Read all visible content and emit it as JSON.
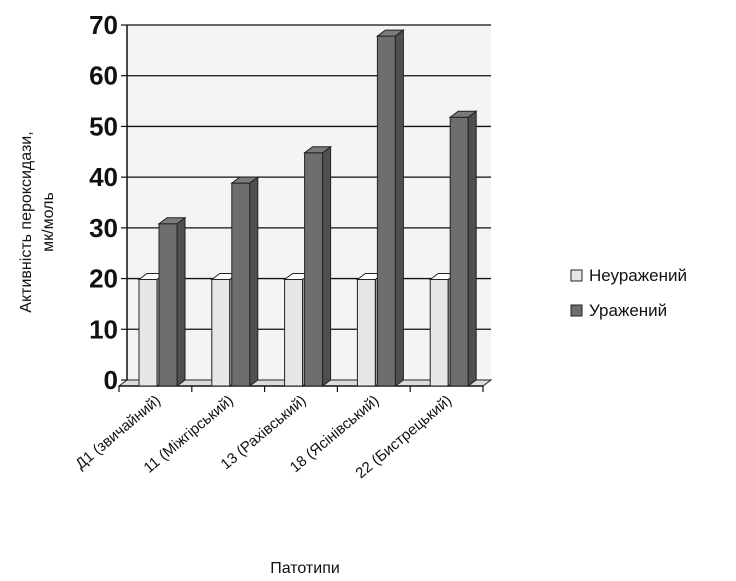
{
  "chart_data": {
    "type": "bar",
    "categories": [
      "Д1 (звичайний)",
      "11 (Міжгірський)",
      "13 (Рахівський)",
      "18 (Ясінівський)",
      "22 (Бистрецький)"
    ],
    "series": [
      {
        "name": "Неуражений",
        "color": "#e6e6e6",
        "values": [
          21,
          21,
          21,
          21,
          21
        ]
      },
      {
        "name": "Уражений",
        "color": "#6e6e6e",
        "values": [
          32,
          40,
          46,
          69,
          53
        ]
      }
    ],
    "ylabel_line1": "Активність пероксидази,",
    "ylabel_line2": "мк/моль",
    "xlabel": "Патотипи",
    "ylim": [
      0,
      70
    ],
    "yticks": [
      0,
      10,
      20,
      30,
      40,
      50,
      60,
      70
    ],
    "grid": true,
    "legend_position": "right"
  }
}
